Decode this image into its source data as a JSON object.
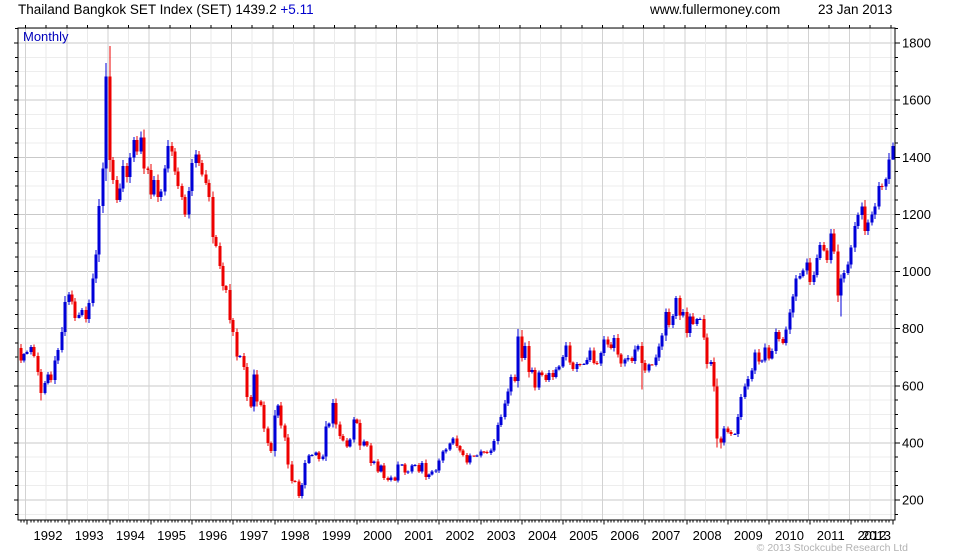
{
  "header": {
    "title": "Thailand Bangkok SET Index (SET) 1439.2",
    "change": "+5.11",
    "website": "www.fullermoney.com",
    "date": "23 Jan 2013"
  },
  "chart": {
    "timeframe_label": "Monthly",
    "copyright": "© 2013 Stockcube Research Ltd"
  },
  "colors": {
    "up": "#0000d9",
    "down": "#ee0000",
    "accent_blue": "#0000cc",
    "grid_major": "#c9c9c9",
    "grid_minor": "#ededed",
    "grid_year": "#d2d2d2",
    "grid_halfyear": "#eaeaea"
  },
  "chart_data": {
    "type": "candlestick",
    "title": "Thailand Bangkok SET Index (SET)",
    "timeframe": "Monthly",
    "start_month": "1991-11",
    "end_month": "2013-01",
    "last_close": 1439.2,
    "change": 5.11,
    "ylim": [
      130,
      1852
    ],
    "y_major_ticks": [
      200,
      400,
      600,
      800,
      1000,
      1200,
      1400,
      1600,
      1800
    ],
    "y_minor_step": 50,
    "x_year_labels": [
      "1992",
      "1993",
      "1994",
      "1995",
      "1996",
      "1997",
      "1998",
      "1999",
      "2000",
      "2001",
      "2002",
      "2003",
      "2004",
      "2005",
      "2006",
      "2007",
      "2008",
      "2009",
      "2010",
      "2011",
      "2012",
      "2013"
    ],
    "first_open": 733,
    "closes": [
      688,
      711,
      718,
      736,
      704,
      648,
      575,
      610,
      640,
      620,
      688,
      725,
      788,
      893,
      920,
      895,
      838,
      848,
      866,
      834,
      890,
      975,
      1060,
      1230,
      1360,
      1683,
      1390,
      1320,
      1250,
      1290,
      1370,
      1330,
      1400,
      1460,
      1420,
      1470,
      1360,
      1355,
      1270,
      1320,
      1260,
      1280,
      1360,
      1440,
      1420,
      1350,
      1300,
      1260,
      1200,
      1281,
      1380,
      1410,
      1380,
      1340,
      1310,
      1260,
      1120,
      1090,
      1020,
      950,
      935,
      831,
      788,
      702,
      705,
      665,
      560,
      527,
      640,
      545,
      533,
      450,
      400,
      372,
      495,
      530,
      460,
      418,
      325,
      267,
      265,
      214,
      253,
      330,
      355,
      358,
      366,
      343,
      352,
      458,
      468,
      540,
      465,
      424,
      408,
      388,
      412,
      481,
      470,
      390,
      404,
      390,
      330,
      334,
      300,
      320,
      277,
      270,
      279,
      269,
      324,
      325,
      296,
      300,
      320,
      322,
      300,
      330,
      280,
      290,
      300,
      303,
      339,
      370,
      376,
      397,
      416,
      389,
      373,
      357,
      332,
      355,
      354,
      356,
      370,
      368,
      364,
      374,
      407,
      462,
      491,
      538,
      579,
      631,
      617,
      772,
      698,
      740,
      648,
      655,
      593,
      646,
      637,
      620,
      645,
      630,
      657,
      668,
      701,
      741,
      681,
      658,
      676,
      675,
      676,
      690,
      723,
      680,
      678,
      714,
      762,
      745,
      733,
      768,
      709,
      678,
      692,
      698,
      686,
      727,
      739,
      680,
      654,
      674,
      673,
      699,
      737,
      776,
      859,
      813,
      845,
      907,
      846,
      858,
      784,
      843,
      817,
      833,
      834,
      769,
      677,
      684,
      597,
      416,
      401,
      450,
      438,
      431,
      431,
      491,
      560,
      597,
      624,
      653,
      717,
      685,
      689,
      734,
      696,
      721,
      788,
      763,
      750,
      797,
      856,
      913,
      975,
      984,
      1003,
      1032,
      964,
      988,
      1047,
      1093,
      1074,
      1041,
      1133,
      1070,
      916,
      975,
      995,
      1025,
      1084,
      1160,
      1197,
      1228,
      1141,
      1172,
      1199,
      1227,
      1299,
      1298,
      1324,
      1392,
      1439
    ],
    "wick_overrides": {
      "6": [
        null,
        548
      ],
      "26": [
        1789,
        null
      ],
      "81": [
        null,
        207
      ],
      "146": [
        795,
        null
      ],
      "181": [
        null,
        587
      ],
      "191": [
        915,
        null
      ],
      "203": [
        null,
        383
      ],
      "204": [
        null,
        380
      ],
      "236": [
        1148,
        null
      ],
      "239": [
        null,
        843
      ],
      "254": [
        1451,
        1391
      ]
    }
  }
}
